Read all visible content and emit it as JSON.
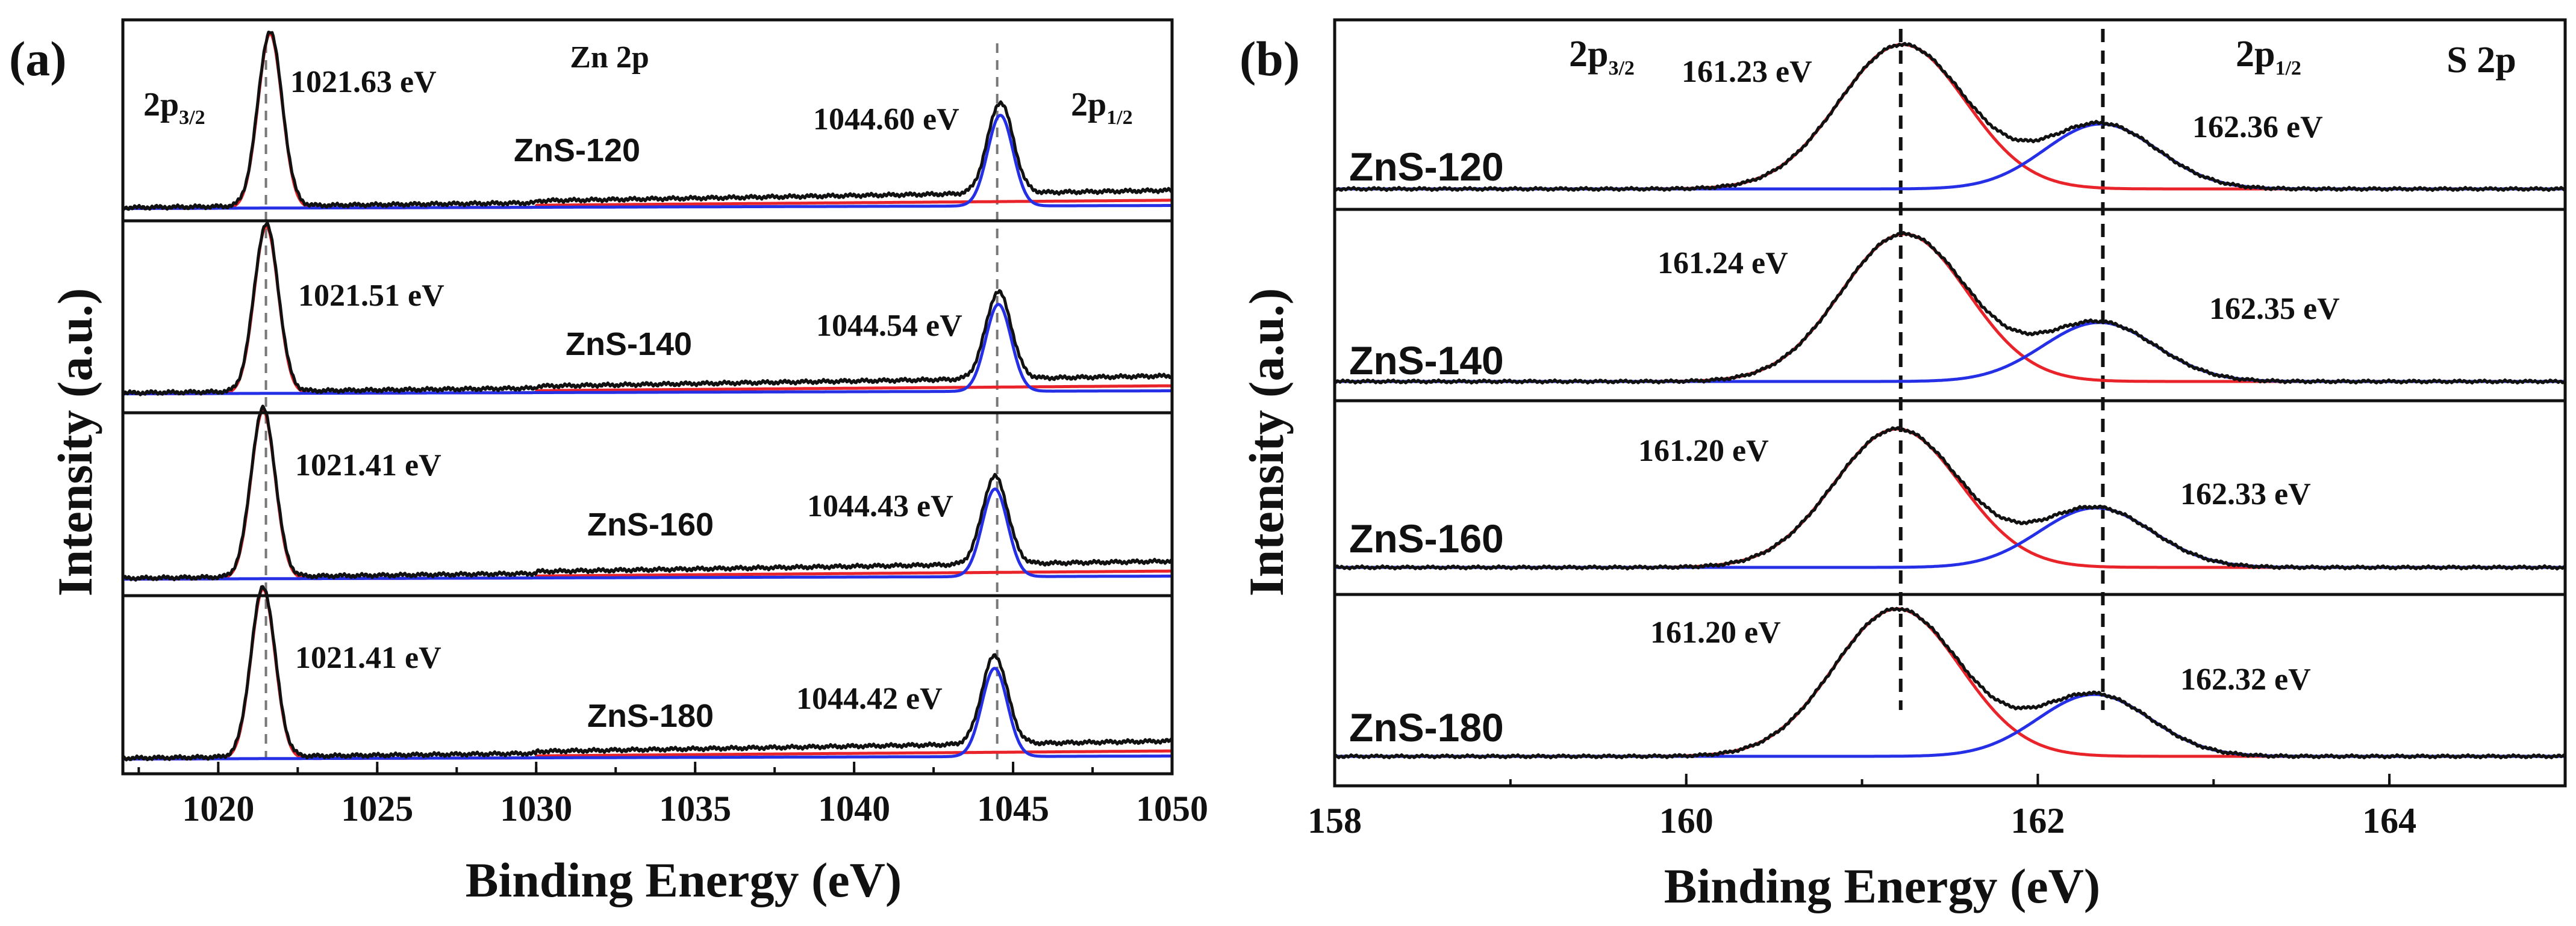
{
  "colors": {
    "envelope": "#111111",
    "first_component": "#e8242a",
    "second_component": "#2530e6",
    "guide_a": "#777777",
    "guide_b": "#111111"
  },
  "chart_data": [
    {
      "panel": "(a)",
      "type": "line",
      "title": "Zn 2p",
      "xlabel": "Binding Energy (eV)",
      "ylabel": "Intensity (a.u.)",
      "xlim": [
        1017,
        1050
      ],
      "xticks": [
        1020,
        1025,
        1030,
        1035,
        1040,
        1045,
        1050
      ],
      "corner_labels": [
        {
          "main": "2p",
          "sub": "3/2"
        },
        {
          "main": "2p",
          "sub": "1/2"
        }
      ],
      "series": [
        {
          "name": "ZnS-120",
          "peak1_ev": 1021.63,
          "peak1_label": "1021.63 eV",
          "peak2_ev": 1044.6,
          "peak2_label": "1044.60 eV"
        },
        {
          "name": "ZnS-140",
          "peak1_ev": 1021.51,
          "peak1_label": "1021.51 eV",
          "peak2_ev": 1044.54,
          "peak2_label": "1044.54 eV"
        },
        {
          "name": "ZnS-160",
          "peak1_ev": 1021.41,
          "peak1_label": "1021.41 eV",
          "peak2_ev": 1044.43,
          "peak2_label": "1044.43 eV"
        },
        {
          "name": "ZnS-180",
          "peak1_ev": 1021.41,
          "peak1_label": "1021.41 eV",
          "peak2_ev": 1044.42,
          "peak2_label": "1044.42 eV"
        }
      ],
      "guide_lines_ev": [
        1021.5,
        1044.5
      ]
    },
    {
      "panel": "(b)",
      "type": "line",
      "title": "S 2p",
      "xlabel": "Binding Energy (eV)",
      "ylabel": "Intensity (a.u.)",
      "xlim": [
        158,
        165
      ],
      "xticks": [
        158,
        160,
        162,
        164
      ],
      "corner_labels": [
        {
          "main": "2p",
          "sub": "3/2"
        },
        {
          "main": "2p",
          "sub": "1/2"
        }
      ],
      "series": [
        {
          "name": "ZnS-120",
          "peak1_ev": 161.23,
          "peak1_label": "161.23 eV",
          "peak2_ev": 162.36,
          "peak2_label": "162.36 eV"
        },
        {
          "name": "ZnS-140",
          "peak1_ev": 161.24,
          "peak1_label": "161.24 eV",
          "peak2_ev": 162.35,
          "peak2_label": "162.35 eV"
        },
        {
          "name": "ZnS-160",
          "peak1_ev": 161.2,
          "peak1_label": "161.20 eV",
          "peak2_ev": 162.33,
          "peak2_label": "162.33 eV"
        },
        {
          "name": "ZnS-180",
          "peak1_ev": 161.2,
          "peak1_label": "161.20 eV",
          "peak2_ev": 162.32,
          "peak2_label": "162.32 eV"
        }
      ],
      "guide_lines_ev": [
        161.22,
        162.37
      ]
    }
  ]
}
